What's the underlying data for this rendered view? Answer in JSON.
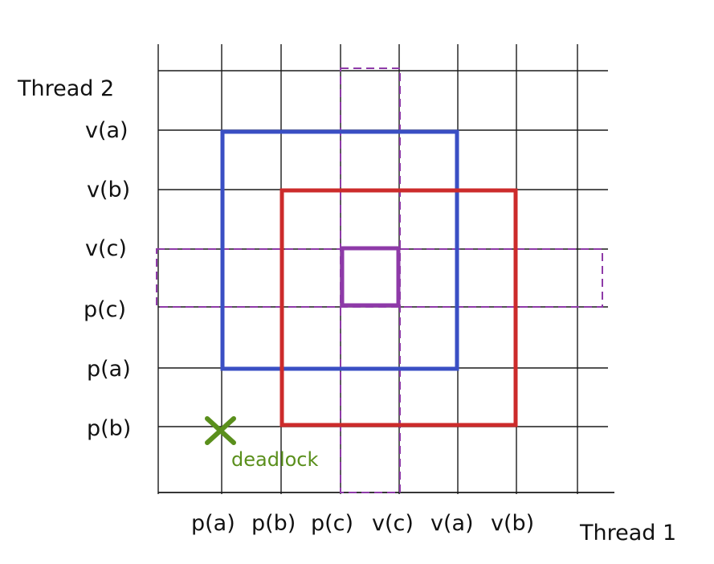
{
  "axes": {
    "x_title": "Thread 1",
    "y_title": "Thread 2",
    "x_ticks": [
      "p(a)",
      "p(b)",
      "p(c)",
      "v(c)",
      "v(a)",
      "v(b)"
    ],
    "y_ticks": [
      "v(a)",
      "v(b)",
      "v(c)",
      "p(c)",
      "p(a)",
      "p(b)"
    ]
  },
  "regions": [
    {
      "name": "lock-a-region",
      "color": "#3a4fc4",
      "style": "solid",
      "x_from": "p(a)",
      "x_to": "v(a)",
      "y_from": "p(a)",
      "y_to": "v(a)"
    },
    {
      "name": "lock-b-region",
      "color": "#cc2b2b",
      "style": "solid",
      "x_from": "p(b)",
      "x_to": "v(b)",
      "y_from": "p(b)",
      "y_to": "v(b)"
    },
    {
      "name": "lock-c-region",
      "color": "#8e3aa8",
      "style": "solid",
      "x_from": "p(c)",
      "x_to": "v(c)",
      "y_from": "p(c)",
      "y_to": "v(c)"
    },
    {
      "name": "lock-c-vertical-band",
      "color": "#8e3aa8",
      "style": "dashed",
      "x_from": "p(c)",
      "x_to": "v(c)",
      "y_from": "full",
      "y_to": "full"
    },
    {
      "name": "lock-c-horizontal-band",
      "color": "#8e3aa8",
      "style": "dashed",
      "x_from": "full",
      "x_to": "full",
      "y_from": "p(c)",
      "y_to": "v(c)"
    }
  ],
  "deadlock": {
    "label": "deadlock",
    "color": "#5a8f1c",
    "x": "p(a)",
    "y": "p(b)"
  }
}
